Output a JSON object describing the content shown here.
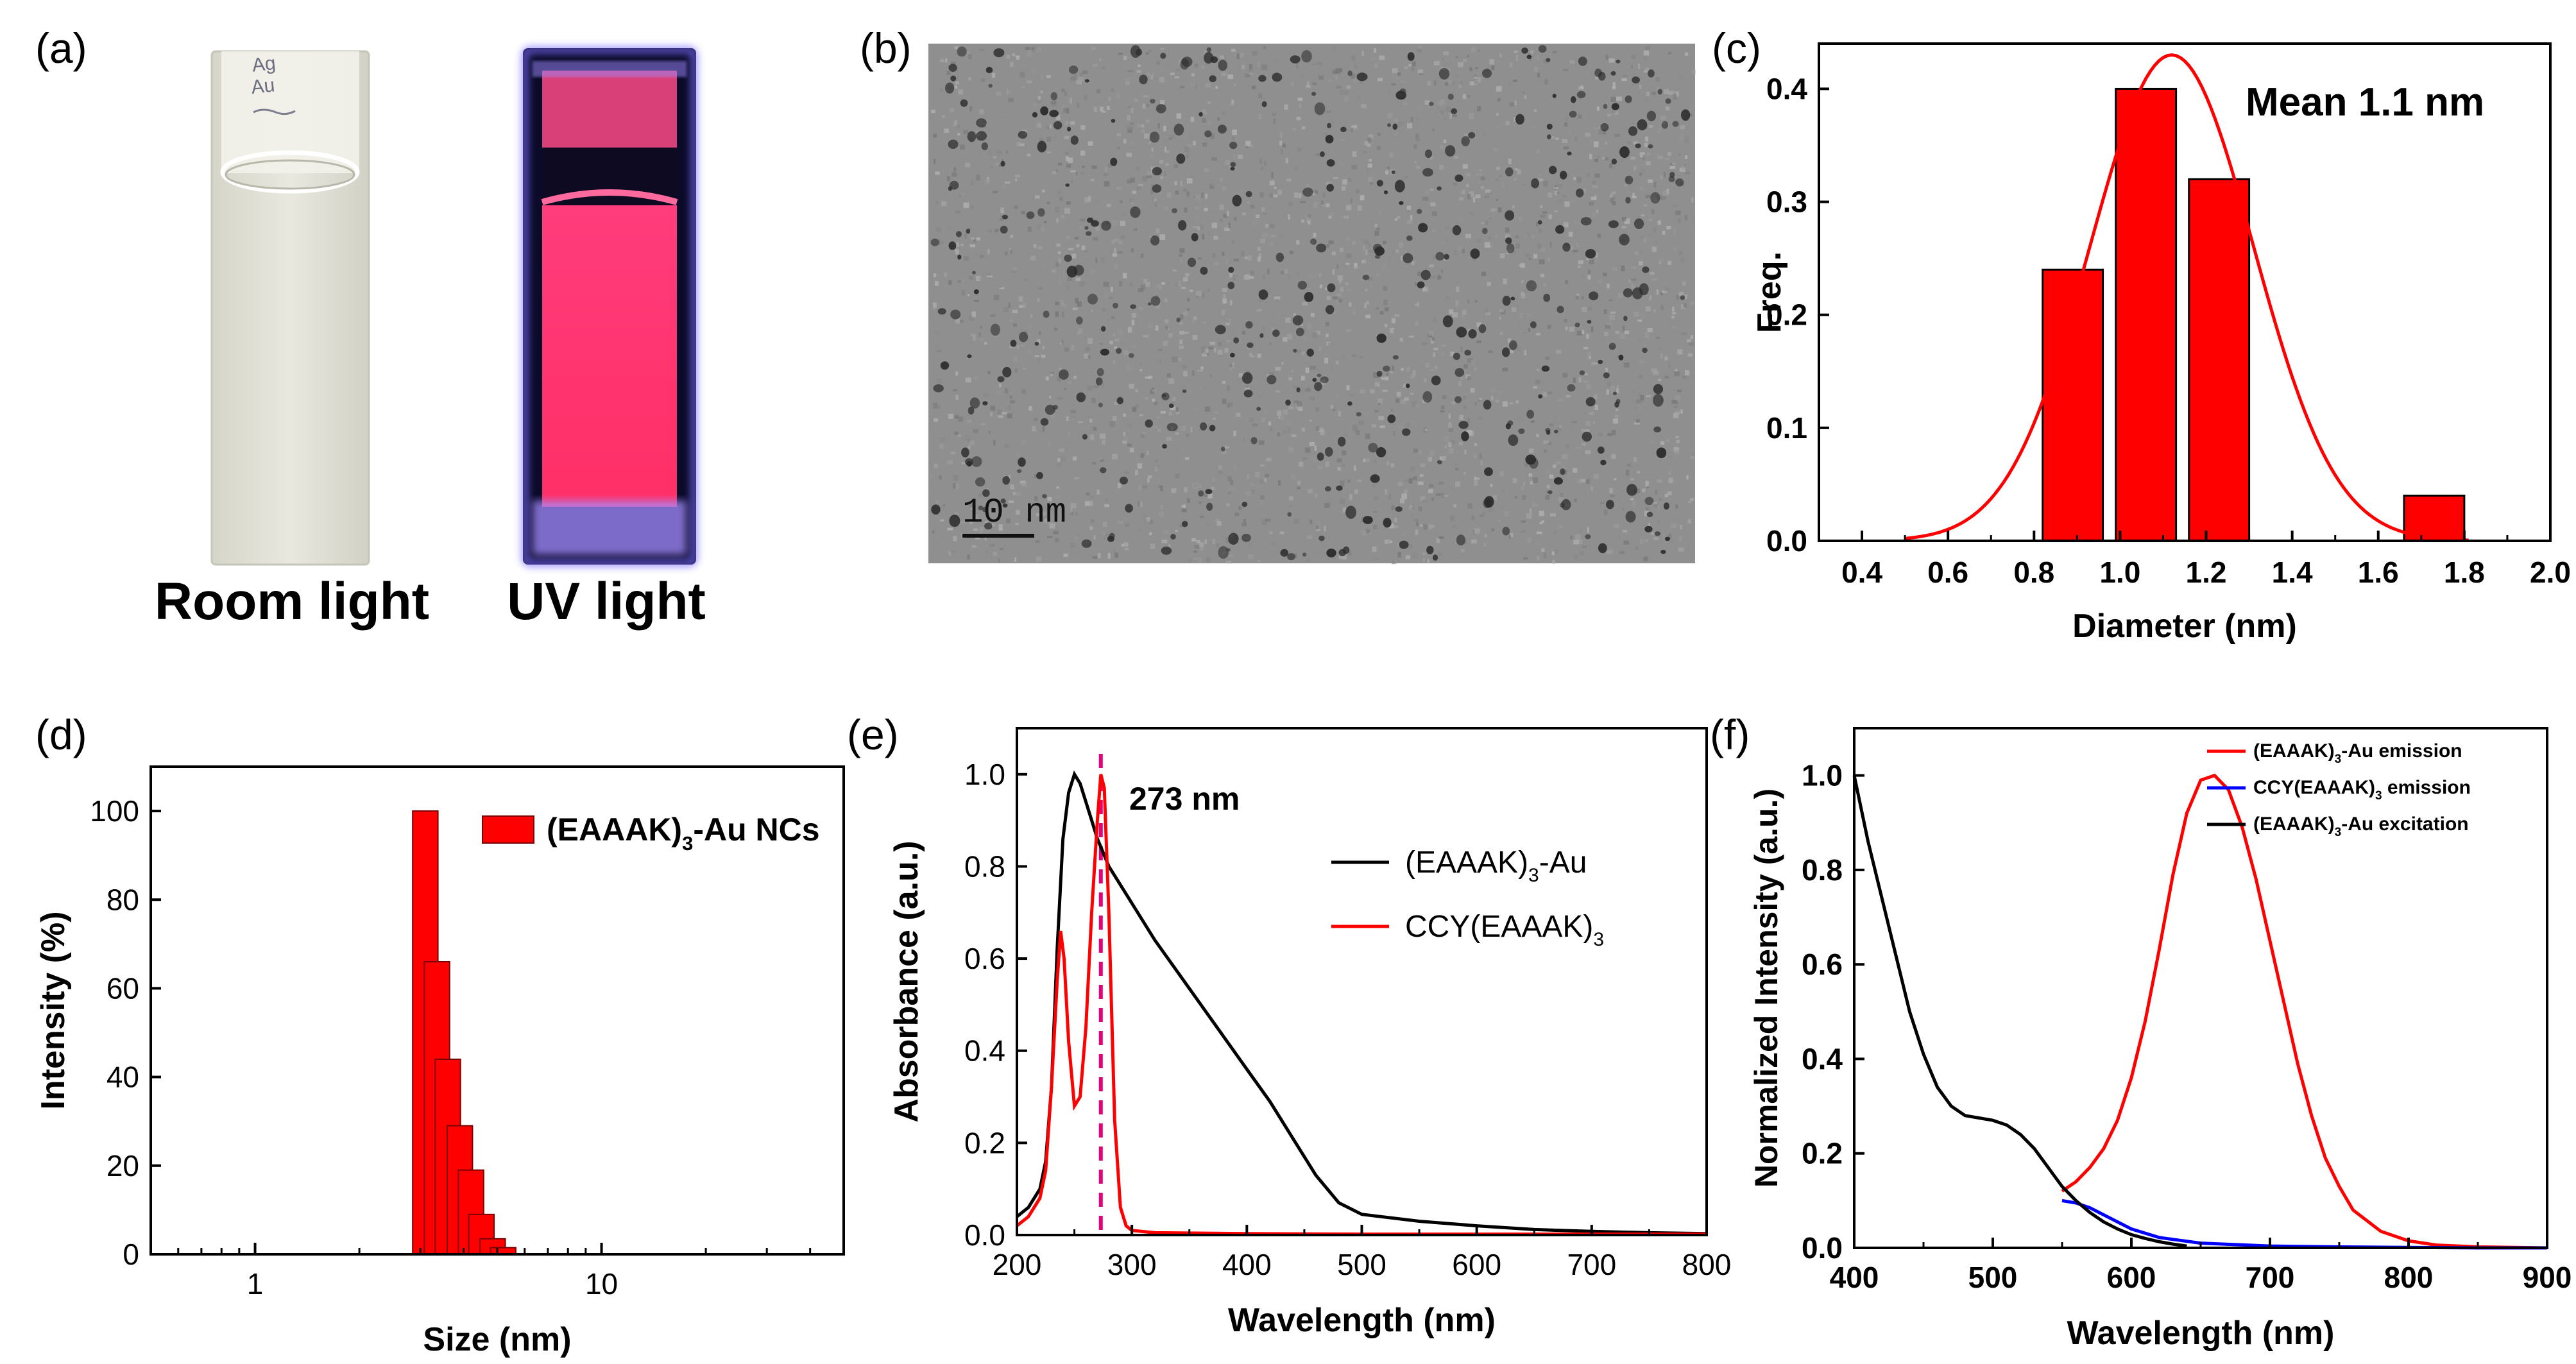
{
  "panel_labels": {
    "a": "(a)",
    "b": "(b)",
    "c": "(c)",
    "d": "(d)",
    "e": "(e)",
    "f": "(f)"
  },
  "panel_a": {
    "left_caption": "Room light",
    "right_caption": "UV light",
    "cuvette_handwriting": "Ag\nAu",
    "colors": {
      "room_light_liquid": "#e4e3d8",
      "uv_background": "#0a0a2a",
      "uv_liquid": "#f0306a",
      "uv_glow": "#7a6cff"
    }
  },
  "panel_b": {
    "scale_bar_label": "10 nm",
    "colors": {
      "background": "#8f8f8f",
      "particle": "#2c2c2c"
    }
  },
  "chart_data": [
    {
      "id": "c",
      "type": "bar",
      "title": "",
      "annotation": "Mean 1.1 nm",
      "xlabel": "Diameter (nm)",
      "ylabel": "Freq.",
      "xlim": [
        0.3,
        2.0
      ],
      "ylim": [
        0,
        0.44
      ],
      "xticks": [
        "0.4",
        "0.6",
        "0.8",
        "1.0",
        "1.2",
        "1.4",
        "1.6",
        "1.8",
        "2.0"
      ],
      "yticks": [
        "0.0",
        "0.1",
        "0.2",
        "0.3",
        "0.4"
      ],
      "bars": [
        {
          "x0": 0.82,
          "x1": 0.96,
          "value": 0.24
        },
        {
          "x0": 0.99,
          "x1": 1.13,
          "value": 0.4
        },
        {
          "x0": 1.16,
          "x1": 1.3,
          "value": 0.32
        },
        {
          "x0": 1.66,
          "x1": 1.8,
          "value": 0.04
        }
      ],
      "fit": {
        "type": "gaussian",
        "mean": 1.12,
        "sigma": 0.19,
        "peak": 0.43
      },
      "colors": {
        "bar": "#ff0000",
        "fit": "#ff0000"
      }
    },
    {
      "id": "d",
      "type": "bar",
      "xscale": "log",
      "xlabel": "Size (nm)",
      "ylabel": "Intensity (%)",
      "xlim": [
        0.5,
        50
      ],
      "ylim": [
        0,
        110
      ],
      "xticks": [
        "1",
        "10"
      ],
      "yticks": [
        "0",
        "20",
        "40",
        "60",
        "80",
        "100"
      ],
      "legend": {
        "label_main": "(EAAAK)",
        "label_sub": "3",
        "label_tail": "-Au NCs",
        "position": "top-right"
      },
      "bars": [
        {
          "size": 3.1,
          "value": 100
        },
        {
          "size": 3.35,
          "value": 66
        },
        {
          "size": 3.6,
          "value": 44
        },
        {
          "size": 3.9,
          "value": 29
        },
        {
          "size": 4.2,
          "value": 19
        },
        {
          "size": 4.5,
          "value": 9
        },
        {
          "size": 4.85,
          "value": 3.5
        },
        {
          "size": 5.2,
          "value": 1.5
        }
      ],
      "colors": {
        "bar": "#ff0000"
      }
    },
    {
      "id": "e",
      "type": "line",
      "xlabel": "Wavelength (nm)",
      "ylabel": "Absorbance (a.u.)",
      "xlim": [
        200,
        800
      ],
      "ylim": [
        0,
        1.1
      ],
      "xticks": [
        "200",
        "300",
        "400",
        "500",
        "600",
        "700",
        "800"
      ],
      "yticks": [
        "0.0",
        "0.2",
        "0.4",
        "0.6",
        "0.8",
        "1.0"
      ],
      "annotation": "273 nm",
      "marker_line_x": 273,
      "series": [
        {
          "name": "(EAAAK)3-Au",
          "label_main": "(EAAAK)",
          "label_sub": "3",
          "label_tail": "-Au",
          "color": "#000000",
          "x": [
            200,
            210,
            220,
            225,
            230,
            235,
            240,
            245,
            250,
            255,
            260,
            265,
            270,
            275,
            280,
            290,
            300,
            320,
            340,
            360,
            380,
            400,
            420,
            440,
            460,
            480,
            500,
            550,
            600,
            650,
            700,
            750,
            800
          ],
          "y": [
            0.04,
            0.06,
            0.1,
            0.16,
            0.32,
            0.62,
            0.86,
            0.96,
            1.0,
            0.98,
            0.94,
            0.9,
            0.86,
            0.83,
            0.8,
            0.76,
            0.72,
            0.64,
            0.57,
            0.5,
            0.43,
            0.36,
            0.29,
            0.21,
            0.13,
            0.07,
            0.045,
            0.03,
            0.02,
            0.012,
            0.008,
            0.005,
            0.003
          ]
        },
        {
          "name": "CCY(EAAAK)3",
          "label_main": "CCY(EAAAK)",
          "label_sub": "3",
          "label_tail": "",
          "color": "#ff0000",
          "x": [
            200,
            210,
            220,
            225,
            230,
            235,
            238,
            241,
            245,
            250,
            255,
            260,
            265,
            270,
            273,
            276,
            280,
            285,
            290,
            295,
            300,
            320,
            400,
            500,
            600,
            700,
            800
          ],
          "y": [
            0.02,
            0.04,
            0.08,
            0.14,
            0.32,
            0.55,
            0.66,
            0.6,
            0.42,
            0.28,
            0.3,
            0.45,
            0.7,
            0.9,
            1.0,
            0.97,
            0.7,
            0.25,
            0.06,
            0.02,
            0.01,
            0.005,
            0.003,
            0.002,
            0.002,
            0.002,
            0.002
          ]
        }
      ]
    },
    {
      "id": "f",
      "type": "line",
      "xlabel": "Wavelength (nm)",
      "ylabel": "Normalized Intensity (a.u.)",
      "xlim": [
        400,
        900
      ],
      "ylim": [
        0,
        1.1
      ],
      "xticks": [
        "400",
        "500",
        "600",
        "700",
        "800",
        "900"
      ],
      "yticks": [
        "0.0",
        "0.2",
        "0.4",
        "0.6",
        "0.8",
        "1.0"
      ],
      "series": [
        {
          "name": "(EAAAK)3-Au emission",
          "label_main": "(EAAAK)",
          "label_sub": "3",
          "label_tail": "-Au emission",
          "color": "#ff0000",
          "x": [
            550,
            560,
            570,
            580,
            590,
            600,
            610,
            620,
            630,
            640,
            650,
            660,
            670,
            680,
            690,
            700,
            710,
            720,
            730,
            740,
            750,
            760,
            780,
            800,
            820,
            850,
            900
          ],
          "y": [
            0.12,
            0.14,
            0.17,
            0.21,
            0.27,
            0.36,
            0.48,
            0.63,
            0.79,
            0.92,
            0.99,
            1.0,
            0.97,
            0.89,
            0.78,
            0.65,
            0.52,
            0.39,
            0.28,
            0.19,
            0.13,
            0.08,
            0.035,
            0.015,
            0.006,
            0.002,
            0.0
          ]
        },
        {
          "name": "CCY(EAAAK)3 emission",
          "label_main": "CCY(EAAAK)",
          "label_sub": "3",
          "label_tail": " emission",
          "color": "#0000ff",
          "x": [
            550,
            560,
            570,
            580,
            590,
            600,
            620,
            650,
            700,
            750,
            800,
            850,
            900
          ],
          "y": [
            0.1,
            0.095,
            0.085,
            0.07,
            0.055,
            0.04,
            0.022,
            0.01,
            0.004,
            0.002,
            0.001,
            0.0,
            0.0
          ]
        },
        {
          "name": "(EAAAK)3-Au excitation",
          "label_main": "(EAAAK)",
          "label_sub": "3",
          "label_tail": "-Au excitation",
          "color": "#000000",
          "x": [
            400,
            410,
            420,
            430,
            440,
            450,
            460,
            470,
            480,
            490,
            500,
            510,
            520,
            530,
            540,
            550,
            560,
            570,
            580,
            590,
            600,
            610,
            620,
            630,
            640
          ],
          "y": [
            1.0,
            0.86,
            0.74,
            0.62,
            0.5,
            0.41,
            0.34,
            0.3,
            0.28,
            0.275,
            0.27,
            0.26,
            0.24,
            0.21,
            0.17,
            0.13,
            0.1,
            0.075,
            0.055,
            0.04,
            0.028,
            0.02,
            0.013,
            0.008,
            0.004
          ]
        }
      ]
    }
  ]
}
